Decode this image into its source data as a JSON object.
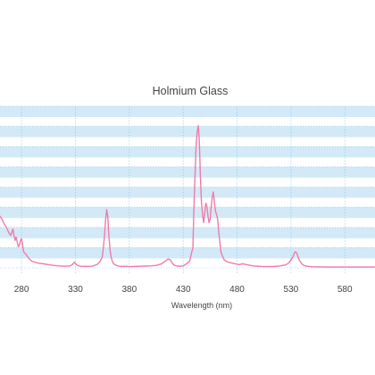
{
  "chart_data": {
    "type": "line",
    "title": "Holmium Glass",
    "xlabel": "Wavelength (nm)",
    "ylabel": "",
    "xlim": [
      260,
      608
    ],
    "ylim": [
      0,
      1.0
    ],
    "x_ticks": [
      280,
      330,
      380,
      430,
      480,
      530,
      580
    ],
    "grid": {
      "horizontal_bands": true,
      "vertical_dotted_lines": true
    },
    "legend": "none",
    "colors": {
      "line": "#f07bab",
      "band": "#d3e9f7",
      "grid_line": "#8fc8ea",
      "text": "#444444"
    },
    "series": [
      {
        "x": [
          260,
          262,
          264,
          266,
          268,
          270,
          271,
          272,
          273,
          274,
          275,
          276,
          277,
          278,
          279,
          280,
          281,
          282,
          283,
          284,
          285,
          286,
          288,
          290,
          295,
          300,
          305,
          310,
          315,
          320,
          325,
          327,
          329,
          331,
          333,
          335,
          340,
          345,
          350,
          353,
          355,
          356,
          357,
          358,
          359,
          360,
          361,
          362,
          363,
          364,
          365,
          366,
          368,
          370,
          373,
          375,
          380,
          385,
          390,
          395,
          400,
          405,
          410,
          413,
          416,
          418,
          419,
          420,
          421,
          422,
          424,
          426,
          430,
          432,
          434,
          436,
          437,
          438,
          439,
          440,
          441,
          442,
          443,
          444,
          445,
          446,
          447,
          448,
          449,
          450,
          451,
          452,
          453,
          454,
          455,
          456,
          457,
          458,
          459,
          460,
          461,
          462,
          463,
          464,
          465,
          466,
          468,
          470,
          472,
          475,
          478,
          480,
          482,
          485,
          490,
          495,
          500,
          505,
          510,
          515,
          520,
          525,
          528,
          530,
          532,
          533,
          534,
          535,
          536,
          537,
          538,
          539,
          540,
          542,
          545,
          548,
          550,
          555,
          560,
          565,
          570,
          575,
          580,
          585,
          590,
          595,
          600,
          605,
          608
        ],
        "y": [
          0.32,
          0.3,
          0.27,
          0.25,
          0.22,
          0.2,
          0.22,
          0.24,
          0.2,
          0.17,
          0.19,
          0.16,
          0.13,
          0.14,
          0.17,
          0.18,
          0.14,
          0.1,
          0.09,
          0.085,
          0.075,
          0.065,
          0.05,
          0.04,
          0.03,
          0.025,
          0.02,
          0.015,
          0.012,
          0.01,
          0.012,
          0.02,
          0.035,
          0.02,
          0.012,
          0.01,
          0.009,
          0.01,
          0.02,
          0.04,
          0.07,
          0.13,
          0.2,
          0.3,
          0.36,
          0.32,
          0.2,
          0.12,
          0.07,
          0.045,
          0.03,
          0.022,
          0.015,
          0.011,
          0.009,
          0.01,
          0.008,
          0.009,
          0.01,
          0.011,
          0.012,
          0.015,
          0.025,
          0.04,
          0.055,
          0.05,
          0.04,
          0.027,
          0.02,
          0.015,
          0.012,
          0.01,
          0.012,
          0.02,
          0.03,
          0.04,
          0.07,
          0.1,
          0.12,
          0.38,
          0.58,
          0.76,
          0.84,
          0.88,
          0.78,
          0.56,
          0.4,
          0.33,
          0.28,
          0.34,
          0.4,
          0.38,
          0.32,
          0.28,
          0.3,
          0.38,
          0.44,
          0.47,
          0.4,
          0.35,
          0.33,
          0.3,
          0.22,
          0.16,
          0.1,
          0.08,
          0.05,
          0.04,
          0.035,
          0.03,
          0.025,
          0.023,
          0.02,
          0.025,
          0.018,
          0.012,
          0.01,
          0.008,
          0.008,
          0.009,
          0.012,
          0.018,
          0.03,
          0.05,
          0.07,
          0.09,
          0.1,
          0.095,
          0.08,
          0.06,
          0.045,
          0.035,
          0.025,
          0.015,
          0.01,
          0.008,
          0.007,
          0.006,
          0.006,
          0.005,
          0.005,
          0.005,
          0.005,
          0.005,
          0.005,
          0.005,
          0.005,
          0.005,
          0.005
        ]
      }
    ]
  }
}
